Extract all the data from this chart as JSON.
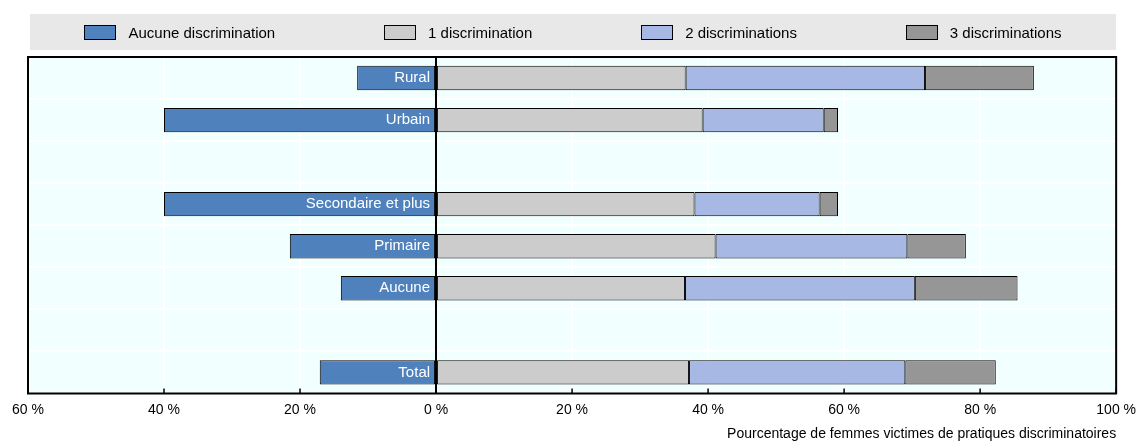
{
  "chart_data": {
    "type": "bar",
    "orientation": "horizontal",
    "stacked": true,
    "xlabel": "Pourcentage de femmes victimes de pratiques discriminatoires",
    "categories": [
      "Rural",
      "Urbain",
      null,
      "Secondaire et plus",
      "Primaire",
      "Aucune",
      null,
      "Total"
    ],
    "series": [
      {
        "name": "Aucune discrimination",
        "color": "#4f81bd",
        "values": [
          -11.6,
          -40.0,
          null,
          -40.0,
          -21.5,
          -14.0,
          null,
          -17.1
        ]
      },
      {
        "name": "1 discrimination",
        "color": "#cccccc",
        "values": [
          36.7,
          39.2,
          null,
          38.0,
          41.1,
          36.6,
          null,
          37.2
        ]
      },
      {
        "name": "2 discriminations",
        "color": "#a6b8e3",
        "values": [
          35.2,
          17.8,
          null,
          18.4,
          28.2,
          33.8,
          null,
          31.8
        ]
      },
      {
        "name": "3 discriminations",
        "color": "#969696",
        "values": [
          16.0,
          2.1,
          null,
          2.7,
          8.6,
          15.1,
          null,
          13.3
        ]
      }
    ],
    "xlim": [
      -60,
      100
    ],
    "xticks": [
      {
        "value": -60,
        "label": "60 %"
      },
      {
        "value": -40,
        "label": "40 %"
      },
      {
        "value": -20,
        "label": "20 %"
      },
      {
        "value": 0,
        "label": "0 %"
      },
      {
        "value": 20,
        "label": "20 %"
      },
      {
        "value": 40,
        "label": "40 %"
      },
      {
        "value": 60,
        "label": "60 %"
      },
      {
        "value": 80,
        "label": "80 %"
      },
      {
        "value": 100,
        "label": "100 %"
      }
    ],
    "grid": true,
    "legend": "top"
  }
}
